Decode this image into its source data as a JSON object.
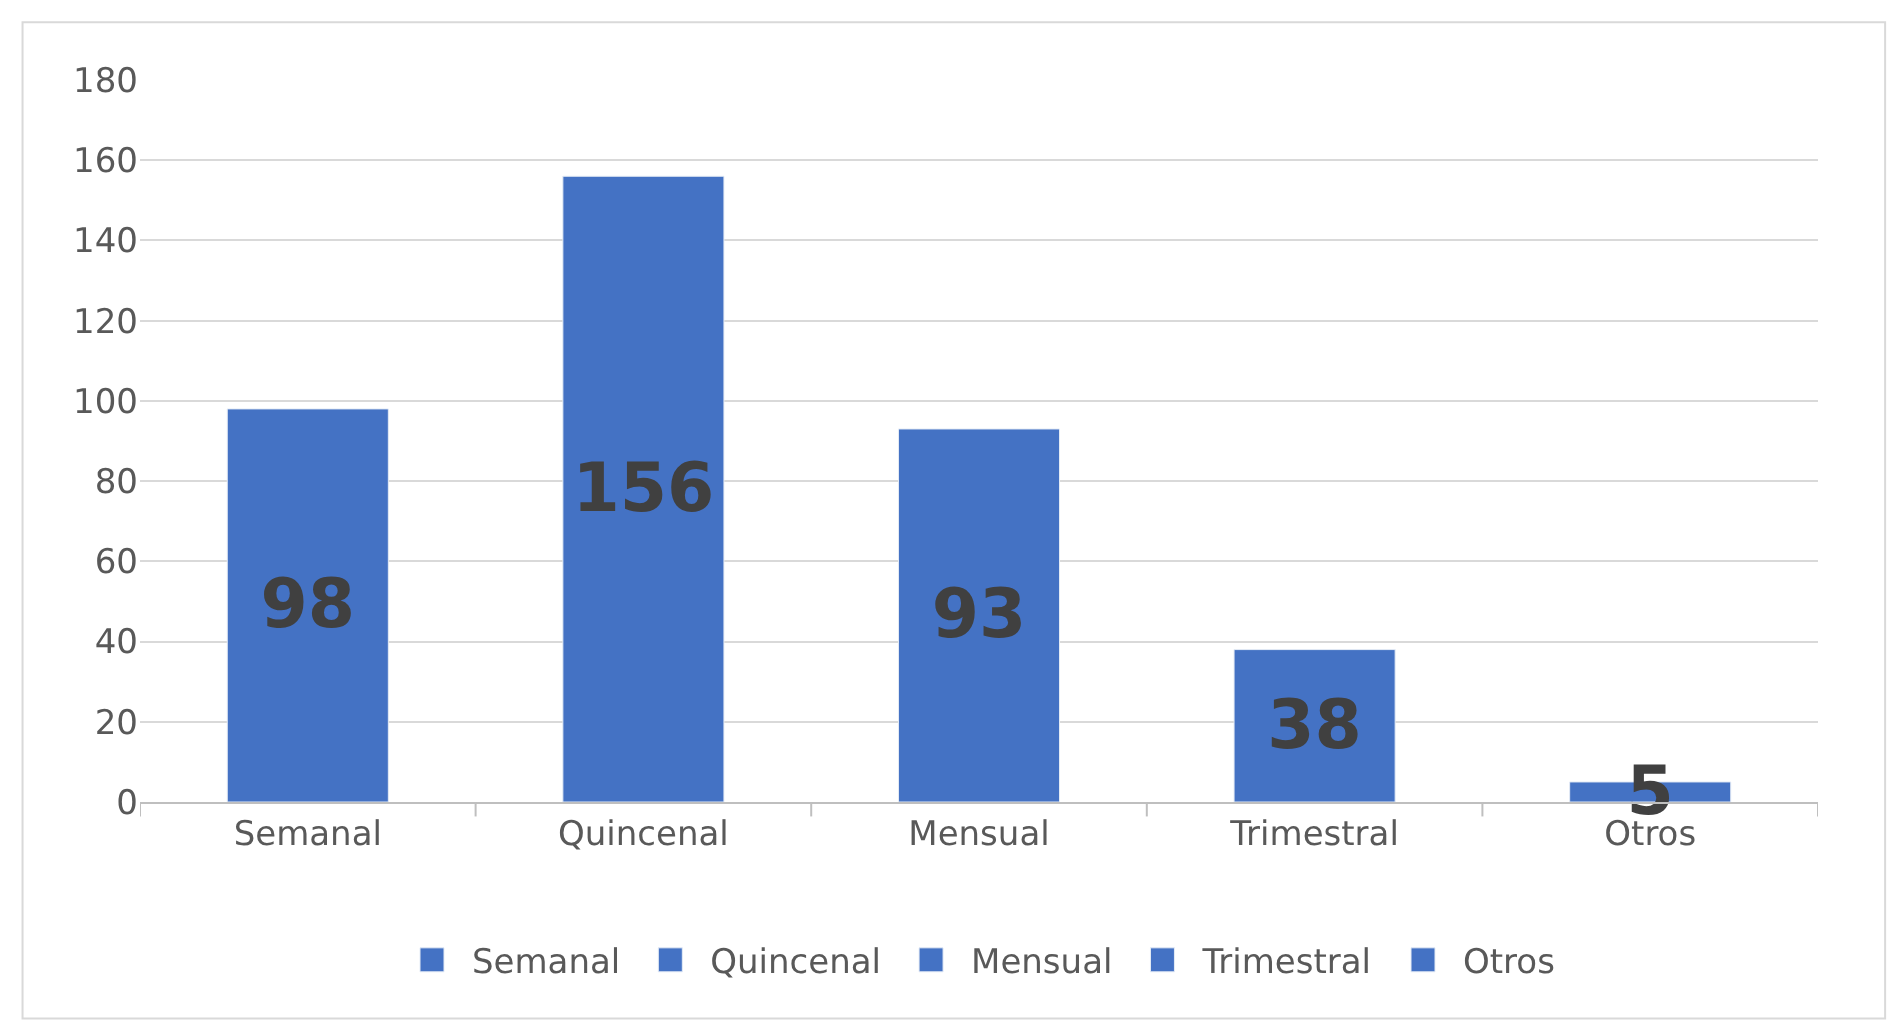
{
  "chart_data": {
    "type": "bar",
    "categories": [
      "Semanal",
      "Quincenal",
      "Mensual",
      "Trimestral",
      "Otros"
    ],
    "stacked": true,
    "series": [
      {
        "name": "Semanal",
        "color": "#4472c4",
        "values": [
          98,
          null,
          null,
          null,
          null
        ]
      },
      {
        "name": "Quincenal",
        "color": "#4472c4",
        "values": [
          null,
          156,
          null,
          null,
          null
        ]
      },
      {
        "name": "Mensual",
        "color": "#4472c4",
        "values": [
          null,
          null,
          93,
          null,
          null
        ]
      },
      {
        "name": "Trimestral",
        "color": "#4472c4",
        "values": [
          null,
          null,
          null,
          38,
          null
        ]
      },
      {
        "name": "Otros",
        "color": "#4472c4",
        "values": [
          null,
          null,
          null,
          null,
          5
        ]
      }
    ],
    "ylim": [
      0,
      180
    ],
    "yticks": [
      0,
      20,
      40,
      60,
      80,
      100,
      120,
      140,
      160,
      180
    ],
    "grid": "y",
    "legend": "bottom",
    "data_labels": true
  }
}
